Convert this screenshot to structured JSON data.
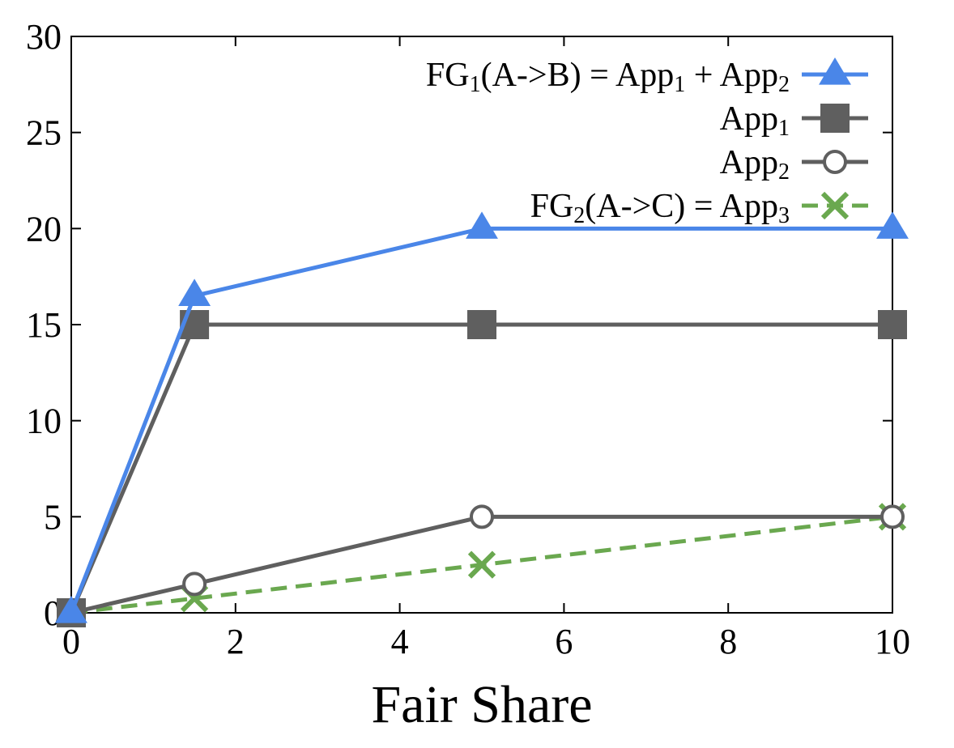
{
  "chart_data": {
    "type": "line",
    "title": "",
    "xlabel": "Fair Share",
    "ylabel": "",
    "xlim": [
      0,
      10
    ],
    "ylim": [
      0,
      30
    ],
    "xticks": [
      0,
      2,
      4,
      6,
      8,
      10
    ],
    "yticks": [
      0,
      5,
      10,
      15,
      20,
      25,
      30
    ],
    "grid": false,
    "legend_position": "top-right",
    "series": [
      {
        "name": "FG1(A->B) = App1 + App2",
        "label_parts": [
          {
            "t": "FG",
            "sub": false
          },
          {
            "t": "1",
            "sub": true
          },
          {
            "t": "(A->B) = App",
            "sub": false
          },
          {
            "t": "1",
            "sub": true
          },
          {
            "t": " + App",
            "sub": false
          },
          {
            "t": "2",
            "sub": true
          }
        ],
        "color": "#4a86e8",
        "marker": "triangle",
        "dash": false,
        "x": [
          0,
          1.5,
          5,
          10
        ],
        "y": [
          0,
          16.5,
          20,
          20
        ]
      },
      {
        "name": "App1",
        "label_parts": [
          {
            "t": "App",
            "sub": false
          },
          {
            "t": "1",
            "sub": true
          }
        ],
        "color": "#5f5f5f",
        "marker": "square",
        "dash": false,
        "x": [
          0,
          1.5,
          5,
          10
        ],
        "y": [
          0,
          15,
          15,
          15
        ]
      },
      {
        "name": "App2",
        "label_parts": [
          {
            "t": "App",
            "sub": false
          },
          {
            "t": "2",
            "sub": true
          }
        ],
        "color": "#5f5f5f",
        "marker": "circle-open",
        "dash": false,
        "x": [
          0,
          1.5,
          5,
          10
        ],
        "y": [
          0,
          1.5,
          5,
          5
        ]
      },
      {
        "name": "FG2(A->C) = App3",
        "label_parts": [
          {
            "t": "FG",
            "sub": false
          },
          {
            "t": "2",
            "sub": true
          },
          {
            "t": "(A->C) = App",
            "sub": false
          },
          {
            "t": "3",
            "sub": true
          }
        ],
        "color": "#6aa84f",
        "marker": "x",
        "dash": true,
        "x": [
          0,
          1.5,
          5,
          10
        ],
        "y": [
          0,
          0.75,
          2.5,
          5
        ]
      }
    ]
  }
}
